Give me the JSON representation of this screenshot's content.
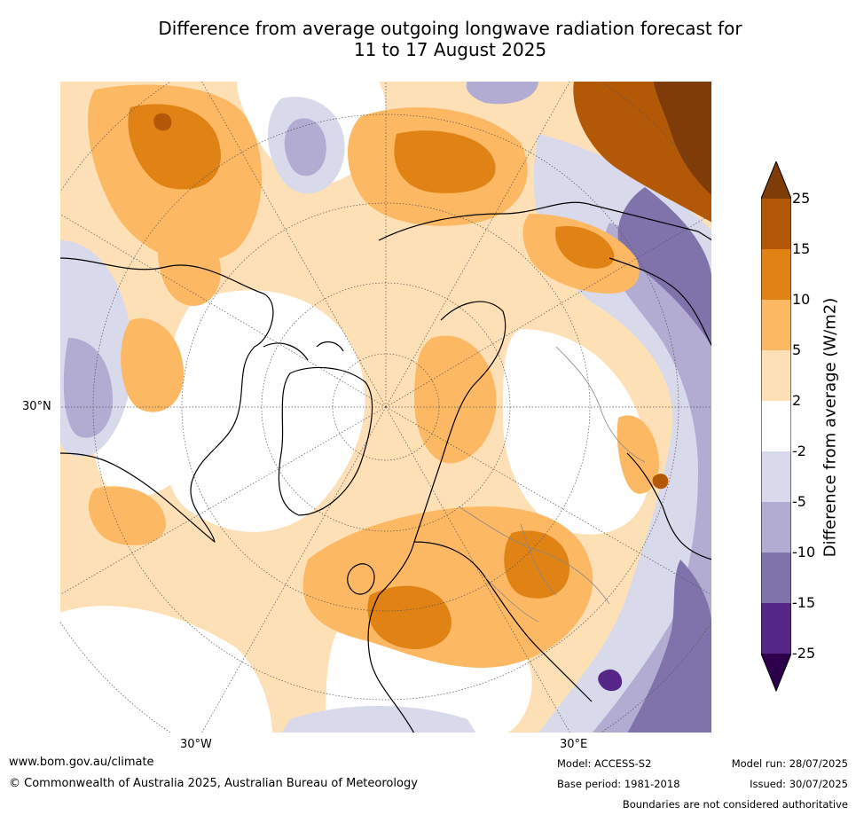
{
  "title_line1": "Difference from average outgoing longwave radiation forecast for",
  "title_line2": "11 to 17 August 2025",
  "map": {
    "lat_label": "30°N",
    "lon_label_w": "30°W",
    "lon_label_e": "30°E"
  },
  "colorbar": {
    "label": "Difference from average (W/m2)",
    "ticks": [
      "25",
      "15",
      "10",
      "5",
      "2",
      "-2",
      "-5",
      "-10",
      "-15",
      "-25"
    ],
    "colors": [
      "#7f3b08",
      "#b35806",
      "#e08214",
      "#fdb863",
      "#fee0b6",
      "#ffffff",
      "#d8daeb",
      "#b2abd2",
      "#8073ac",
      "#542788",
      "#2d004b"
    ]
  },
  "footer": {
    "website": "www.bom.gov.au/climate",
    "copyright": "© Commonwealth of Australia 2025, Australian Bureau of Meteorology",
    "model": "Model: ACCESS-S2",
    "base_period": "Base period: 1981-2018",
    "model_run": "Model run: 28/07/2025",
    "issued": "Issued: 30/07/2025",
    "disclaimer": "Boundaries are not considered authoritative"
  }
}
